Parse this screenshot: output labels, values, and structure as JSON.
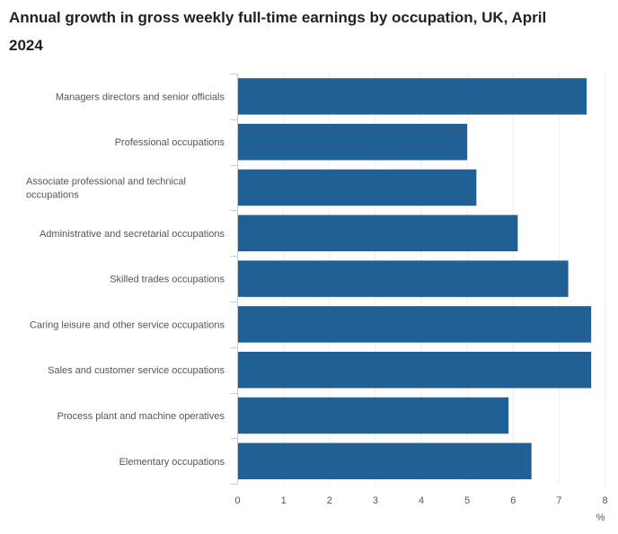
{
  "chart_data": {
    "type": "bar",
    "orientation": "horizontal",
    "title": "Annual growth in gross weekly full-time earnings by occupation, UK, April 2024",
    "categories": [
      "Managers directors and senior officials",
      "Professional occupations",
      "Associate professional and technical occupations",
      "Administrative and secretarial occupations",
      "Skilled trades occupations",
      "Caring leisure and other service occupations",
      "Sales and customer service occupations",
      "Process plant and machine operatives",
      "Elementary occupations"
    ],
    "series": [
      {
        "name": "Annual growth",
        "values": [
          7.6,
          5.0,
          5.2,
          6.1,
          7.2,
          7.7,
          7.7,
          5.9,
          6.4
        ]
      }
    ],
    "xlabel": "%",
    "ylabel": "",
    "xlim": [
      0,
      8
    ],
    "xticks": [
      0,
      1,
      2,
      3,
      4,
      5,
      6,
      7,
      8
    ],
    "grid": true,
    "legend": "none",
    "bar_color": "#206095"
  }
}
